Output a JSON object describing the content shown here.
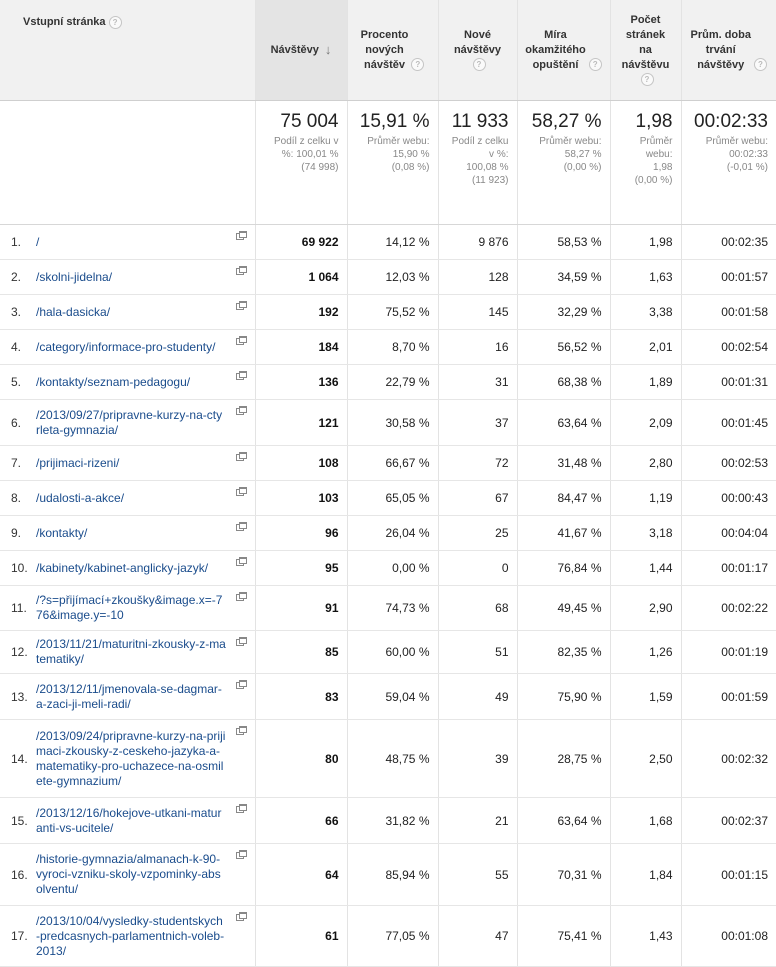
{
  "columns": {
    "page": "Vstupní stránka",
    "visits": "Návštěvy",
    "new_pct": [
      "Procento",
      "nových",
      "návštěv"
    ],
    "new_visits": [
      "Nové",
      "návštěvy"
    ],
    "bounce": [
      "Míra",
      "okamžitého",
      "opuštění"
    ],
    "pages": [
      "Počet",
      "stránek",
      "na",
      "návštěvu"
    ],
    "duration": [
      "Prům. doba",
      "trvání",
      "návštěvy"
    ]
  },
  "help_glyph": "?",
  "sort_glyph": "↓",
  "totals": {
    "visits": {
      "value": "75 004",
      "sub": [
        "Podíl z celku v",
        "%: 100,01 %",
        "(74 998)"
      ]
    },
    "new_pct": {
      "value": "15,91 %",
      "sub": [
        "Průměr webu:",
        "15,90 %",
        "(0,08 %)"
      ]
    },
    "new_visits": {
      "value": "11 933",
      "sub": [
        "Podíl z celku",
        "v %:",
        "100,08 %",
        "(11 923)"
      ]
    },
    "bounce": {
      "value": "58,27 %",
      "sub": [
        "Průměr webu:",
        "58,27 %",
        "(0,00 %)"
      ]
    },
    "pages": {
      "value": "1,98",
      "sub": [
        "Průměr",
        "webu:",
        "1,98",
        "(0,00 %)"
      ]
    },
    "duration": {
      "value": "00:02:33",
      "sub": [
        "Průměr webu:",
        "00:02:33",
        "(-0,01 %)"
      ]
    }
  },
  "rows": [
    {
      "n": "1.",
      "url": [
        "/"
      ],
      "visits": "69 922",
      "new_pct": "14,12 %",
      "new_visits": "9 876",
      "bounce": "58,53 %",
      "pages": "1,98",
      "duration": "00:02:35"
    },
    {
      "n": "2.",
      "url": [
        "/skolni-jidelna/"
      ],
      "visits": "1 064",
      "new_pct": "12,03 %",
      "new_visits": "128",
      "bounce": "34,59 %",
      "pages": "1,63",
      "duration": "00:01:57"
    },
    {
      "n": "3.",
      "url": [
        "/hala-dasicka/"
      ],
      "visits": "192",
      "new_pct": "75,52 %",
      "new_visits": "145",
      "bounce": "32,29 %",
      "pages": "3,38",
      "duration": "00:01:58"
    },
    {
      "n": "4.",
      "url": [
        "/category/informace-pro-studenty/"
      ],
      "visits": "184",
      "new_pct": "8,70 %",
      "new_visits": "16",
      "bounce": "56,52 %",
      "pages": "2,01",
      "duration": "00:02:54"
    },
    {
      "n": "5.",
      "url": [
        "/kontakty/seznam-pedagogu/"
      ],
      "visits": "136",
      "new_pct": "22,79 %",
      "new_visits": "31",
      "bounce": "68,38 %",
      "pages": "1,89",
      "duration": "00:01:31"
    },
    {
      "n": "6.",
      "url": [
        "/2013/09/27/pripravne-kurzy-na-ct",
        "yrleta-gymnazia/"
      ],
      "visits": "121",
      "new_pct": "30,58 %",
      "new_visits": "37",
      "bounce": "63,64 %",
      "pages": "2,09",
      "duration": "00:01:45"
    },
    {
      "n": "7.",
      "url": [
        "/prijimaci-rizeni/"
      ],
      "visits": "108",
      "new_pct": "66,67 %",
      "new_visits": "72",
      "bounce": "31,48 %",
      "pages": "2,80",
      "duration": "00:02:53"
    },
    {
      "n": "8.",
      "url": [
        "/udalosti-a-akce/"
      ],
      "visits": "103",
      "new_pct": "65,05 %",
      "new_visits": "67",
      "bounce": "84,47 %",
      "pages": "1,19",
      "duration": "00:00:43"
    },
    {
      "n": "9.",
      "url": [
        "/kontakty/"
      ],
      "visits": "96",
      "new_pct": "26,04 %",
      "new_visits": "25",
      "bounce": "41,67 %",
      "pages": "3,18",
      "duration": "00:04:04"
    },
    {
      "n": "10.",
      "url": [
        "/kabinety/kabinet-anglicky-jazyk/"
      ],
      "visits": "95",
      "new_pct": "0,00 %",
      "new_visits": "0",
      "bounce": "76,84 %",
      "pages": "1,44",
      "duration": "00:01:17"
    },
    {
      "n": "11.",
      "url": [
        "/?s=přijímací+zkoušky&image.x=",
        "-776&image.y=-10"
      ],
      "visits": "91",
      "new_pct": "74,73 %",
      "new_visits": "68",
      "bounce": "49,45 %",
      "pages": "2,90",
      "duration": "00:02:22"
    },
    {
      "n": "12.",
      "url": [
        "/2013/11/21/maturitni-zkousky-z-",
        "matematiky/"
      ],
      "visits": "85",
      "new_pct": "60,00 %",
      "new_visits": "51",
      "bounce": "82,35 %",
      "pages": "1,26",
      "duration": "00:01:19"
    },
    {
      "n": "13.",
      "url": [
        "/2013/12/11/jmenovala-se-dagmar",
        "-a-zaci-ji-meli-radi/"
      ],
      "visits": "83",
      "new_pct": "59,04 %",
      "new_visits": "49",
      "bounce": "75,90 %",
      "pages": "1,59",
      "duration": "00:01:59"
    },
    {
      "n": "14.",
      "url": [
        "/2013/09/24/pripravne-kurzy-na-pri",
        "jimaci-zkousky-z-ceskeho-jazyka-",
        "a-matematiky-pro-uchazece-na-os",
        "milete-gymnazium/"
      ],
      "visits": "80",
      "new_pct": "48,75 %",
      "new_visits": "39",
      "bounce": "28,75 %",
      "pages": "2,50",
      "duration": "00:02:32"
    },
    {
      "n": "15.",
      "url": [
        "/2013/12/16/hokejove-utkani-matu",
        "ranti-vs-ucitele/"
      ],
      "visits": "66",
      "new_pct": "31,82 %",
      "new_visits": "21",
      "bounce": "63,64 %",
      "pages": "1,68",
      "duration": "00:02:37"
    },
    {
      "n": "16.",
      "url": [
        "/historie-gymnazia/almanach-k-90",
        "-vyroci-vzniku-skoly-vzpominky-ab",
        "solventu/"
      ],
      "visits": "64",
      "new_pct": "85,94 %",
      "new_visits": "55",
      "bounce": "70,31 %",
      "pages": "1,84",
      "duration": "00:01:15"
    },
    {
      "n": "17.",
      "url": [
        "/2013/10/04/vysledky-studentskyc",
        "h-predcasnych-parlamentnich-vole",
        "b-2013/"
      ],
      "visits": "61",
      "new_pct": "77,05 %",
      "new_visits": "47",
      "bounce": "75,41 %",
      "pages": "1,43",
      "duration": "00:01:08"
    }
  ]
}
